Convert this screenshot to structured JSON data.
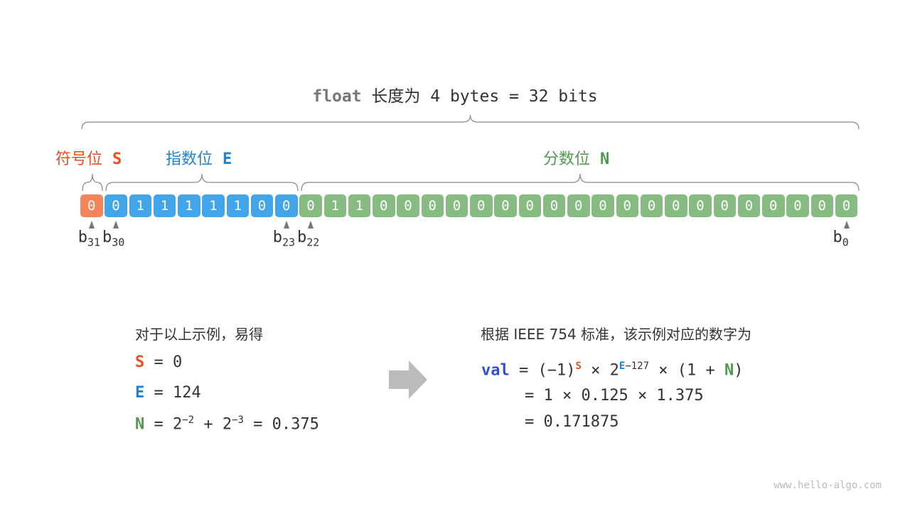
{
  "title": {
    "keyword": "float",
    "text": " 长度为 4 bytes = 32 bits"
  },
  "labels": {
    "sign": "符号位",
    "sign_sym": "S",
    "exp": "指数位",
    "exp_sym": "E",
    "frac": "分数位",
    "frac_sym": "N"
  },
  "bits": {
    "sign": [
      "0"
    ],
    "exponent": [
      "0",
      "1",
      "1",
      "1",
      "1",
      "1",
      "0",
      "0"
    ],
    "fraction": [
      "0",
      "1",
      "1",
      "0",
      "0",
      "0",
      "0",
      "0",
      "0",
      "0",
      "0",
      "0",
      "0",
      "0",
      "0",
      "0",
      "0",
      "0",
      "0",
      "0",
      "0",
      "0",
      "0"
    ]
  },
  "bit_labels": [
    {
      "b": "b",
      "i": "31"
    },
    {
      "b": "b",
      "i": "30"
    },
    {
      "b": "b",
      "i": "23"
    },
    {
      "b": "b",
      "i": "22"
    },
    {
      "b": "b",
      "i": "0"
    }
  ],
  "colors": {
    "sign": "#f5845a",
    "exponent": "#42a5e9",
    "fraction": "#86bc82",
    "sign_text": "#e8501f",
    "exp_text": "#1f84cf",
    "frac_text": "#4f9a4c",
    "val": "#2f4fd0",
    "brace": "#888"
  },
  "left": {
    "heading": "对于以上示例，易得",
    "s": "S",
    "s_val": " = 0",
    "e": "E",
    "e_val": " = 124",
    "n": "N",
    "n_eq": " = 2",
    "n_p1": "−2",
    "n_plus": " + 2",
    "n_p2": "−3",
    "n_res": " = 0.375"
  },
  "right": {
    "heading": "根据 IEEE 754 标准，该示例对应的数字为",
    "val": "val",
    "l1a": " = (−1)",
    "s": "S",
    "l1b": " × 2",
    "e": "E",
    "e_exp": "−127",
    "l1c": " × (1 + ",
    "n": "N",
    "l1d": ")",
    "l2": "= 1 × 0.125 × 1.375",
    "l3": "= 0.171875"
  },
  "arrow_icon": "right-arrow-icon",
  "watermark": "www.hello-algo.com"
}
